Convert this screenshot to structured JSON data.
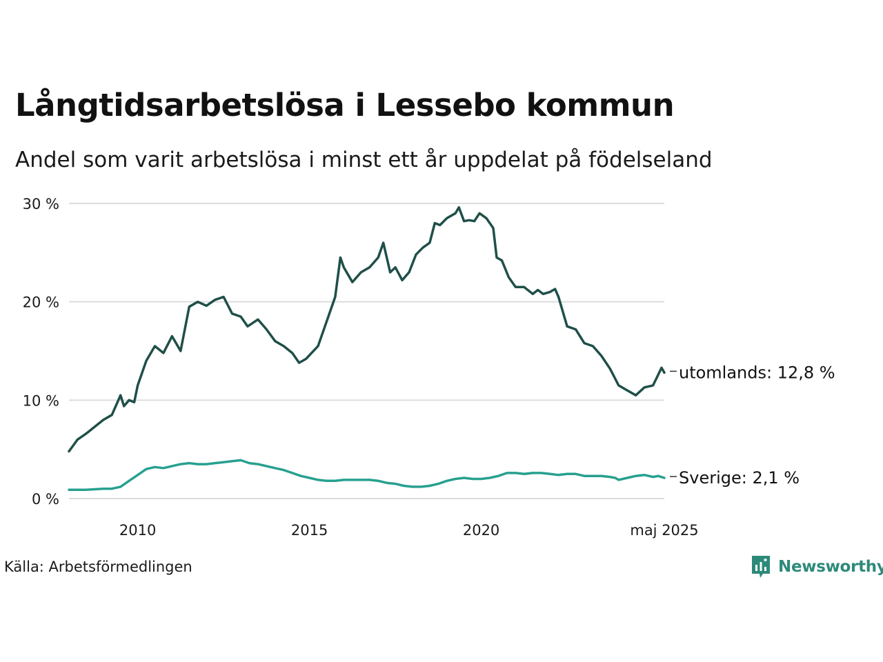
{
  "title": "Långtidsarbetslösa i Lessebo kommun",
  "subtitle": "Andel som varit arbetslösa i minst ett år uppdelat på födelseland",
  "source": "Källa: Arbetsförmedlingen",
  "brand": {
    "name": "Newsworthy",
    "icon": "newsworthy-logo-icon",
    "color": "#2d8a7a"
  },
  "chart_data": {
    "type": "line",
    "title": "Långtidsarbetslösa i Lessebo kommun",
    "subtitle": "Andel som varit arbetslösa i minst ett år uppdelat på födelseland",
    "ylim": [
      0,
      30
    ],
    "xlim": [
      2008.0,
      2025.33
    ],
    "y_ticks": [
      0,
      10,
      20,
      30
    ],
    "y_tick_labels": [
      "0 %",
      "10 %",
      "20 %",
      "30 %"
    ],
    "x_ticks": [
      2010,
      2015,
      2020,
      2025.33
    ],
    "x_tick_labels": [
      "2010",
      "2015",
      "2020",
      "maj 2025"
    ],
    "grid": "horizontal",
    "legend": "direct labels at line ends (right)",
    "series": [
      {
        "name": "utomlands",
        "end_label": "utomlands: 12,8 %",
        "color": "#1f4f48",
        "points": [
          [
            2008.0,
            4.8
          ],
          [
            2008.25,
            6.0
          ],
          [
            2008.5,
            6.6
          ],
          [
            2008.75,
            7.3
          ],
          [
            2009.0,
            8.0
          ],
          [
            2009.25,
            8.5
          ],
          [
            2009.5,
            10.5
          ],
          [
            2009.6,
            9.4
          ],
          [
            2009.75,
            10.0
          ],
          [
            2009.9,
            9.8
          ],
          [
            2010.0,
            11.5
          ],
          [
            2010.25,
            14.0
          ],
          [
            2010.5,
            15.5
          ],
          [
            2010.75,
            14.8
          ],
          [
            2011.0,
            16.5
          ],
          [
            2011.25,
            15.0
          ],
          [
            2011.5,
            19.5
          ],
          [
            2011.75,
            20.0
          ],
          [
            2012.0,
            19.6
          ],
          [
            2012.25,
            20.2
          ],
          [
            2012.5,
            20.5
          ],
          [
            2012.75,
            18.8
          ],
          [
            2013.0,
            18.5
          ],
          [
            2013.2,
            17.5
          ],
          [
            2013.5,
            18.2
          ],
          [
            2013.75,
            17.2
          ],
          [
            2014.0,
            16.0
          ],
          [
            2014.25,
            15.5
          ],
          [
            2014.5,
            14.8
          ],
          [
            2014.7,
            13.8
          ],
          [
            2014.9,
            14.2
          ],
          [
            2015.25,
            15.5
          ],
          [
            2015.5,
            18.0
          ],
          [
            2015.75,
            20.5
          ],
          [
            2015.9,
            24.5
          ],
          [
            2016.0,
            23.5
          ],
          [
            2016.25,
            22.0
          ],
          [
            2016.5,
            23.0
          ],
          [
            2016.75,
            23.5
          ],
          [
            2017.0,
            24.5
          ],
          [
            2017.15,
            26.0
          ],
          [
            2017.35,
            23.0
          ],
          [
            2017.5,
            23.5
          ],
          [
            2017.7,
            22.2
          ],
          [
            2017.9,
            23.0
          ],
          [
            2018.1,
            24.8
          ],
          [
            2018.3,
            25.5
          ],
          [
            2018.5,
            26.0
          ],
          [
            2018.65,
            28.0
          ],
          [
            2018.8,
            27.8
          ],
          [
            2019.0,
            28.5
          ],
          [
            2019.25,
            29.0
          ],
          [
            2019.35,
            29.6
          ],
          [
            2019.5,
            28.2
          ],
          [
            2019.65,
            28.3
          ],
          [
            2019.8,
            28.2
          ],
          [
            2019.95,
            29.0
          ],
          [
            2020.15,
            28.5
          ],
          [
            2020.35,
            27.5
          ],
          [
            2020.45,
            24.5
          ],
          [
            2020.6,
            24.2
          ],
          [
            2020.8,
            22.5
          ],
          [
            2021.0,
            21.5
          ],
          [
            2021.25,
            21.5
          ],
          [
            2021.5,
            20.8
          ],
          [
            2021.65,
            21.2
          ],
          [
            2021.8,
            20.8
          ],
          [
            2022.0,
            21.0
          ],
          [
            2022.15,
            21.3
          ],
          [
            2022.25,
            20.5
          ],
          [
            2022.5,
            17.5
          ],
          [
            2022.75,
            17.2
          ],
          [
            2023.0,
            15.8
          ],
          [
            2023.25,
            15.5
          ],
          [
            2023.5,
            14.5
          ],
          [
            2023.75,
            13.2
          ],
          [
            2024.0,
            11.5
          ],
          [
            2024.25,
            11.0
          ],
          [
            2024.5,
            10.5
          ],
          [
            2024.75,
            11.3
          ],
          [
            2025.0,
            11.5
          ],
          [
            2025.1,
            12.2
          ],
          [
            2025.25,
            13.3
          ],
          [
            2025.33,
            12.8
          ]
        ]
      },
      {
        "name": "Sverige",
        "end_label": "Sverige:  2,1 %",
        "color": "#27a08f",
        "points": [
          [
            2008.0,
            0.9
          ],
          [
            2008.5,
            0.9
          ],
          [
            2009.0,
            1.0
          ],
          [
            2009.25,
            1.0
          ],
          [
            2009.5,
            1.2
          ],
          [
            2009.75,
            1.8
          ],
          [
            2010.0,
            2.4
          ],
          [
            2010.25,
            3.0
          ],
          [
            2010.5,
            3.2
          ],
          [
            2010.75,
            3.1
          ],
          [
            2011.0,
            3.3
          ],
          [
            2011.25,
            3.5
          ],
          [
            2011.5,
            3.6
          ],
          [
            2011.75,
            3.5
          ],
          [
            2012.0,
            3.5
          ],
          [
            2012.25,
            3.6
          ],
          [
            2012.5,
            3.7
          ],
          [
            2012.75,
            3.8
          ],
          [
            2013.0,
            3.9
          ],
          [
            2013.25,
            3.6
          ],
          [
            2013.5,
            3.5
          ],
          [
            2013.75,
            3.3
          ],
          [
            2014.0,
            3.1
          ],
          [
            2014.25,
            2.9
          ],
          [
            2014.5,
            2.6
          ],
          [
            2014.75,
            2.3
          ],
          [
            2015.0,
            2.1
          ],
          [
            2015.25,
            1.9
          ],
          [
            2015.5,
            1.8
          ],
          [
            2015.75,
            1.8
          ],
          [
            2016.0,
            1.9
          ],
          [
            2016.25,
            1.9
          ],
          [
            2016.5,
            1.9
          ],
          [
            2016.75,
            1.9
          ],
          [
            2017.0,
            1.8
          ],
          [
            2017.25,
            1.6
          ],
          [
            2017.5,
            1.5
          ],
          [
            2017.75,
            1.3
          ],
          [
            2018.0,
            1.2
          ],
          [
            2018.25,
            1.2
          ],
          [
            2018.5,
            1.3
          ],
          [
            2018.75,
            1.5
          ],
          [
            2019.0,
            1.8
          ],
          [
            2019.25,
            2.0
          ],
          [
            2019.5,
            2.1
          ],
          [
            2019.75,
            2.0
          ],
          [
            2020.0,
            2.0
          ],
          [
            2020.25,
            2.1
          ],
          [
            2020.5,
            2.3
          ],
          [
            2020.75,
            2.6
          ],
          [
            2021.0,
            2.6
          ],
          [
            2021.25,
            2.5
          ],
          [
            2021.5,
            2.6
          ],
          [
            2021.75,
            2.6
          ],
          [
            2022.0,
            2.5
          ],
          [
            2022.25,
            2.4
          ],
          [
            2022.5,
            2.5
          ],
          [
            2022.75,
            2.5
          ],
          [
            2023.0,
            2.3
          ],
          [
            2023.25,
            2.3
          ],
          [
            2023.5,
            2.3
          ],
          [
            2023.75,
            2.2
          ],
          [
            2023.9,
            2.1
          ],
          [
            2024.0,
            1.9
          ],
          [
            2024.25,
            2.1
          ],
          [
            2024.5,
            2.3
          ],
          [
            2024.75,
            2.4
          ],
          [
            2025.0,
            2.2
          ],
          [
            2025.15,
            2.3
          ],
          [
            2025.33,
            2.1
          ]
        ]
      }
    ]
  }
}
